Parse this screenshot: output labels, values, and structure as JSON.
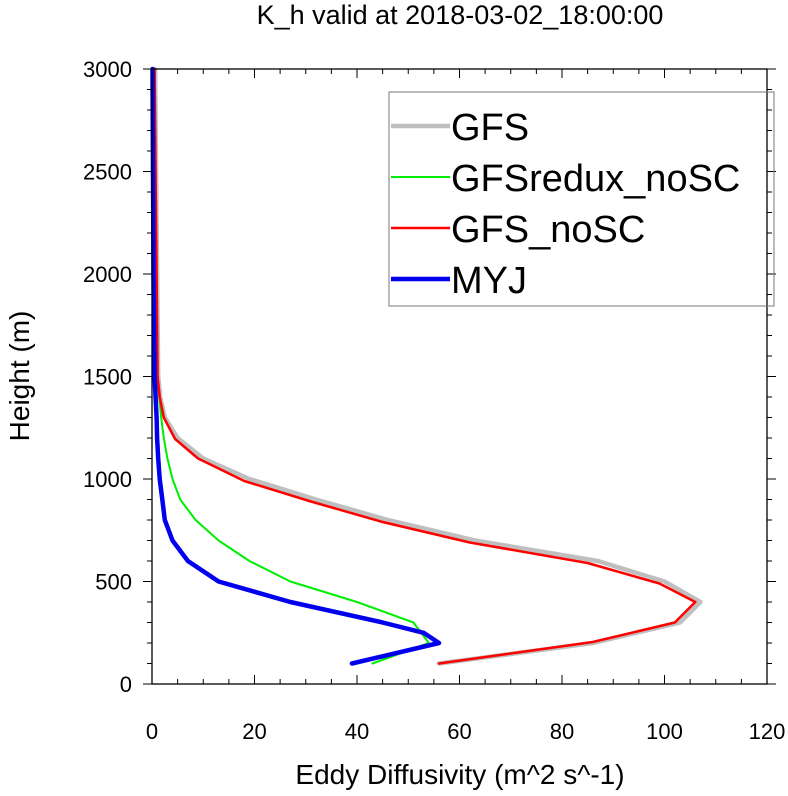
{
  "chart_data": {
    "type": "line",
    "title": "K_h valid at 2018-03-02_18:00:00",
    "xlabel": "Eddy Diffusivity (m^2 s^-1)",
    "ylabel": "Height (m)",
    "xlim": [
      0,
      120
    ],
    "ylim": [
      0,
      3000
    ],
    "x_ticks": [
      "0",
      "20",
      "40",
      "60",
      "80",
      "100",
      "120"
    ],
    "y_ticks": [
      "0",
      "500",
      "1000",
      "1500",
      "2000",
      "2500",
      "3000"
    ],
    "grid": false,
    "legend_position": "top-right",
    "series": [
      {
        "name": "GFS",
        "color": "#bfbfbf",
        "width": 4.5,
        "points": [
          [
            56,
            100
          ],
          [
            86,
            200
          ],
          [
            103,
            300
          ],
          [
            107,
            400
          ],
          [
            100,
            500
          ],
          [
            87,
            600
          ],
          [
            63,
            700
          ],
          [
            46,
            800
          ],
          [
            32,
            900
          ],
          [
            19,
            1000
          ],
          [
            10,
            1100
          ],
          [
            5,
            1200
          ],
          [
            2.5,
            1300
          ],
          [
            1.6,
            1400
          ],
          [
            1.2,
            1500
          ],
          [
            1,
            2000
          ],
          [
            0.8,
            2500
          ],
          [
            0.6,
            3000
          ]
        ]
      },
      {
        "name": "GFSredux_noSC",
        "color": "#00ee00",
        "width": 2,
        "points": [
          [
            43,
            100
          ],
          [
            54,
            200
          ],
          [
            51,
            300
          ],
          [
            40,
            400
          ],
          [
            27,
            500
          ],
          [
            19,
            600
          ],
          [
            13,
            700
          ],
          [
            8.5,
            800
          ],
          [
            5.5,
            900
          ],
          [
            4,
            1000
          ],
          [
            3,
            1100
          ],
          [
            2.3,
            1200
          ],
          [
            1.8,
            1300
          ],
          [
            1.4,
            1400
          ],
          [
            1.1,
            1500
          ],
          [
            0.8,
            2000
          ],
          [
            0.6,
            2500
          ],
          [
            0.4,
            3000
          ]
        ]
      },
      {
        "name": "GFS_noSC",
        "color": "#ff0000",
        "width": 2.5,
        "points": [
          [
            56,
            100
          ],
          [
            86,
            205
          ],
          [
            102,
            300
          ],
          [
            106,
            400
          ],
          [
            99,
            490
          ],
          [
            85,
            590
          ],
          [
            62,
            690
          ],
          [
            45,
            790
          ],
          [
            31,
            890
          ],
          [
            18,
            990
          ],
          [
            9,
            1100
          ],
          [
            4.5,
            1195
          ],
          [
            2.3,
            1300
          ],
          [
            1.5,
            1400
          ],
          [
            1.1,
            1500
          ],
          [
            0.9,
            2000
          ],
          [
            0.7,
            2500
          ],
          [
            0.5,
            3000
          ]
        ]
      },
      {
        "name": "MYJ",
        "color": "#0000ee",
        "width": 4.5,
        "points": [
          [
            39,
            100
          ],
          [
            56,
            200
          ],
          [
            53,
            250
          ],
          [
            45,
            300
          ],
          [
            27,
            400
          ],
          [
            13,
            500
          ],
          [
            7,
            600
          ],
          [
            4,
            700
          ],
          [
            2.5,
            800
          ],
          [
            2,
            900
          ],
          [
            1.5,
            1000
          ],
          [
            1.2,
            1100
          ],
          [
            1,
            1200
          ],
          [
            0.9,
            1300
          ],
          [
            0.7,
            1400
          ],
          [
            0.5,
            1500
          ],
          [
            0.3,
            2000
          ],
          [
            0.2,
            2500
          ],
          [
            0.1,
            3000
          ]
        ]
      }
    ]
  }
}
